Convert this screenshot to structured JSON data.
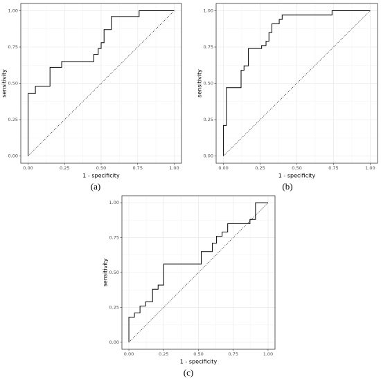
{
  "chart_data": [
    {
      "type": "line",
      "caption": "(a)",
      "xlabel": "1 - specificity",
      "ylabel": "sensitivity",
      "color": "#000000",
      "grid": true,
      "x": [
        0,
        0,
        0.05,
        0.05,
        0.15,
        0.15,
        0.23,
        0.23,
        0.45,
        0.45,
        0.48,
        0.48,
        0.5,
        0.5,
        0.52,
        0.52,
        0.57,
        0.57,
        0.76,
        0.76,
        1
      ],
      "values": [
        0,
        0.43,
        0.43,
        0.48,
        0.48,
        0.61,
        0.61,
        0.65,
        0.65,
        0.7,
        0.7,
        0.74,
        0.74,
        0.78,
        0.78,
        0.87,
        0.87,
        0.96,
        0.96,
        1,
        1
      ],
      "xlim": [
        -0.05,
        1.05
      ],
      "ylim": [
        -0.05,
        1.05
      ],
      "xticks": [
        {
          "value": 0,
          "label": "0.00"
        },
        {
          "value": 0.25,
          "label": "0.25"
        },
        {
          "value": 0.5,
          "label": "0.50"
        },
        {
          "value": 0.75,
          "label": "0.75"
        },
        {
          "value": 1,
          "label": "1.00"
        }
      ],
      "yticks": [
        {
          "value": 0,
          "label": "0.00"
        },
        {
          "value": 0.25,
          "label": "0.25"
        },
        {
          "value": 0.5,
          "label": "0.50"
        },
        {
          "value": 0.75,
          "label": "0.75"
        },
        {
          "value": 1,
          "label": "1.00"
        }
      ]
    },
    {
      "type": "line",
      "caption": "(b)",
      "xlabel": "1 - specificity",
      "ylabel": "sensitivity",
      "color": "#000000",
      "grid": true,
      "x": [
        0,
        0,
        0.02,
        0.02,
        0.12,
        0.12,
        0.14,
        0.14,
        0.17,
        0.17,
        0.26,
        0.26,
        0.29,
        0.29,
        0.31,
        0.31,
        0.33,
        0.33,
        0.38,
        0.38,
        0.4,
        0.4,
        0.74,
        0.74,
        1
      ],
      "values": [
        0,
        0.21,
        0.21,
        0.47,
        0.47,
        0.59,
        0.59,
        0.62,
        0.62,
        0.74,
        0.74,
        0.76,
        0.76,
        0.79,
        0.79,
        0.85,
        0.85,
        0.91,
        0.91,
        0.94,
        0.94,
        0.97,
        0.97,
        1,
        1
      ],
      "xlim": [
        -0.05,
        1.05
      ],
      "ylim": [
        -0.05,
        1.05
      ],
      "xticks": [
        {
          "value": 0,
          "label": "0.00"
        },
        {
          "value": 0.25,
          "label": "0.25"
        },
        {
          "value": 0.5,
          "label": "0.50"
        },
        {
          "value": 0.75,
          "label": "0.75"
        },
        {
          "value": 1,
          "label": "1.00"
        }
      ],
      "yticks": [
        {
          "value": 0,
          "label": "0.00"
        },
        {
          "value": 0.25,
          "label": "0.25"
        },
        {
          "value": 0.5,
          "label": "0.50"
        },
        {
          "value": 0.75,
          "label": "0.75"
        },
        {
          "value": 1,
          "label": "1.00"
        }
      ]
    },
    {
      "type": "line",
      "caption": "(c)",
      "xlabel": "1 - specificity",
      "ylabel": "sensitivity",
      "color": "#000000",
      "grid": true,
      "x": [
        0,
        0,
        0.04,
        0.04,
        0.08,
        0.08,
        0.12,
        0.12,
        0.17,
        0.17,
        0.21,
        0.21,
        0.25,
        0.25,
        0.52,
        0.52,
        0.6,
        0.6,
        0.63,
        0.63,
        0.67,
        0.67,
        0.71,
        0.71,
        0.87,
        0.87,
        0.91,
        0.91,
        1
      ],
      "values": [
        0,
        0.18,
        0.18,
        0.21,
        0.21,
        0.26,
        0.26,
        0.29,
        0.29,
        0.38,
        0.38,
        0.41,
        0.41,
        0.56,
        0.56,
        0.65,
        0.65,
        0.71,
        0.71,
        0.76,
        0.76,
        0.79,
        0.79,
        0.85,
        0.85,
        0.88,
        0.88,
        1,
        1
      ],
      "xlim": [
        -0.05,
        1.05
      ],
      "ylim": [
        -0.05,
        1.05
      ],
      "xticks": [
        {
          "value": 0,
          "label": "0.00"
        },
        {
          "value": 0.25,
          "label": "0.25"
        },
        {
          "value": 0.5,
          "label": "0.50"
        },
        {
          "value": 0.75,
          "label": "0.75"
        },
        {
          "value": 1,
          "label": "1.00"
        }
      ],
      "yticks": [
        {
          "value": 0,
          "label": "0.00"
        },
        {
          "value": 0.25,
          "label": "0.25"
        },
        {
          "value": 0.5,
          "label": "0.50"
        },
        {
          "value": 0.75,
          "label": "0.75"
        },
        {
          "value": 1,
          "label": "1.00"
        }
      ]
    }
  ]
}
